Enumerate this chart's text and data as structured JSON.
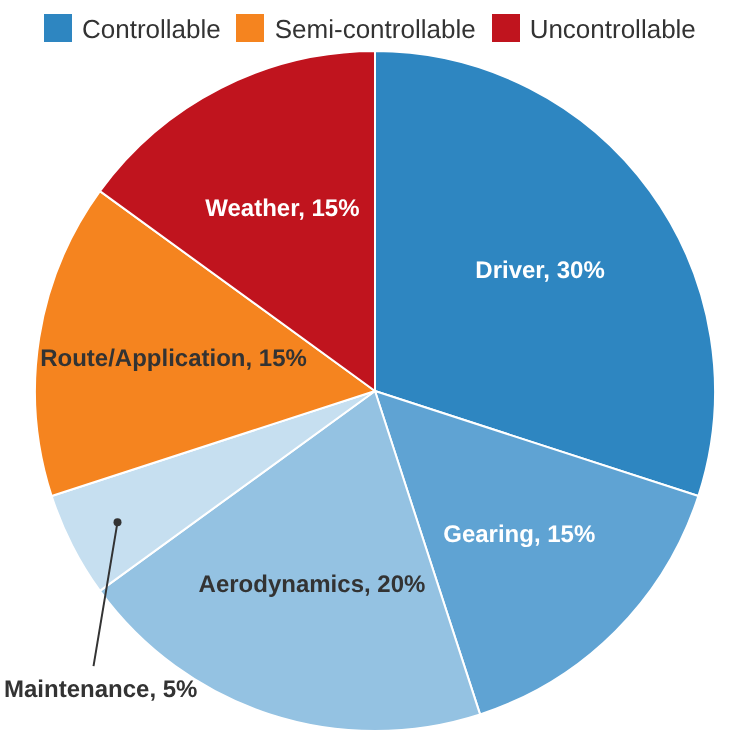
{
  "chart_data": [
    {
      "type": "other",
      "annotations": [
        "Controllable",
        "Semi-controllable",
        "Uncontrollable"
      ],
      "colors": [
        "#2e86c1",
        "#f5841f",
        "#c0141e"
      ]
    },
    {
      "type": "pie",
      "categories": [
        "Driver, 30%",
        "Gearing, 15%",
        "Aerodynamics, 20%",
        "Maintenance, 5%",
        "Route/Application, 15%",
        "Weather, 15%"
      ],
      "values": [
        30,
        15,
        20,
        5,
        15,
        15
      ],
      "colors": [
        "#2e86c1",
        "#5fa3d3",
        "#94c2e2",
        "#c6dff0",
        "#f5841f",
        "#c0141e"
      ]
    }
  ]
}
